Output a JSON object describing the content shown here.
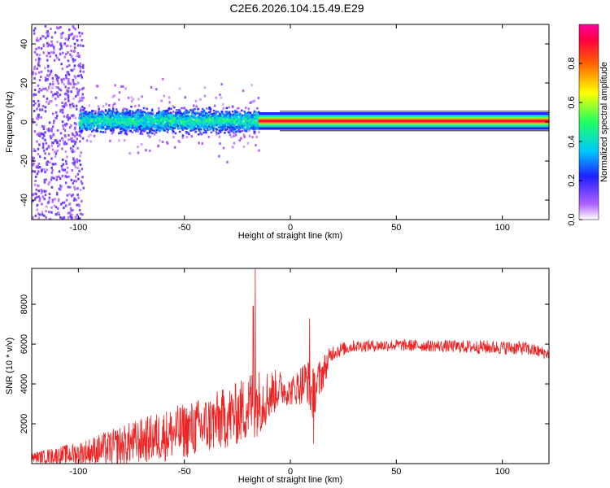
{
  "figure": {
    "title": "C2E6.2026.104.15.49.E29"
  },
  "chart_data": [
    {
      "type": "heatmap",
      "xlabel": "Height of straight line (km)",
      "ylabel": "Frequency (Hz)",
      "xlim": [
        -122,
        122
      ],
      "ylim": [
        -50,
        50
      ],
      "x_ticks": [
        "-100",
        "-50",
        "0",
        "50",
        "100"
      ],
      "x_tick_values": [
        -100,
        -50,
        0,
        50,
        100
      ],
      "y_ticks": [
        "-40",
        "-20",
        "0",
        "20",
        "40"
      ],
      "y_tick_values": [
        -40,
        -20,
        0,
        20,
        40
      ],
      "colorbar": {
        "label": "Normalized spectral amplitude",
        "range": [
          0,
          1
        ],
        "ticks": [
          "0.0",
          "0.2",
          "0.4",
          "0.6",
          "0.8"
        ],
        "tick_values": [
          0.0,
          0.2,
          0.4,
          0.6,
          0.8
        ],
        "colormap": "rainbow (white-violet-blue-cyan-green-yellow-red-magenta)"
      },
      "features": {
        "noise_region_x": [
          -122,
          -100
        ],
        "broad_band": {
          "x": [
            -100,
            -15
          ],
          "freq_center": 1,
          "half_width": 8
        },
        "narrow_band": {
          "x": [
            -15,
            122
          ],
          "freq_center": 0.5,
          "half_width": 1.5
        }
      }
    },
    {
      "type": "line",
      "xlabel": "Height of straight line (km)",
      "ylabel": "SNR (10 * v/v)",
      "xlim": [
        -122,
        122
      ],
      "ylim": [
        0,
        9800
      ],
      "x_ticks": [
        "-100",
        "-50",
        "0",
        "50",
        "100"
      ],
      "x_tick_values": [
        -100,
        -50,
        0,
        50,
        100
      ],
      "y_ticks": [
        "2000",
        "4000",
        "6000",
        "8000"
      ],
      "y_tick_values": [
        2000,
        4000,
        6000,
        8000
      ],
      "series_color": "#ee2222",
      "envelope": {
        "x": [
          -122,
          -100,
          -80,
          -60,
          -40,
          -25,
          -18,
          -17,
          -12,
          -5,
          0,
          8,
          10,
          15,
          20,
          30,
          50,
          70,
          90,
          110,
          122
        ],
        "mean": [
          300,
          500,
          900,
          1400,
          1900,
          2500,
          3000,
          3000,
          3300,
          3800,
          3600,
          4200,
          3400,
          4500,
          5600,
          5900,
          5950,
          5900,
          5850,
          5800,
          5500
        ],
        "spread": [
          250,
          600,
          1000,
          1300,
          1500,
          1600,
          1800,
          1800,
          1500,
          900,
          700,
          1200,
          1400,
          900,
          400,
          300,
          300,
          300,
          350,
          350,
          300
        ]
      },
      "spikes": [
        {
          "x": -16.5,
          "y": 9800
        },
        {
          "x": -17.5,
          "y": 7900
        },
        {
          "x": 9,
          "y": 7300
        },
        {
          "x": 11,
          "y": 1000
        }
      ]
    }
  ]
}
